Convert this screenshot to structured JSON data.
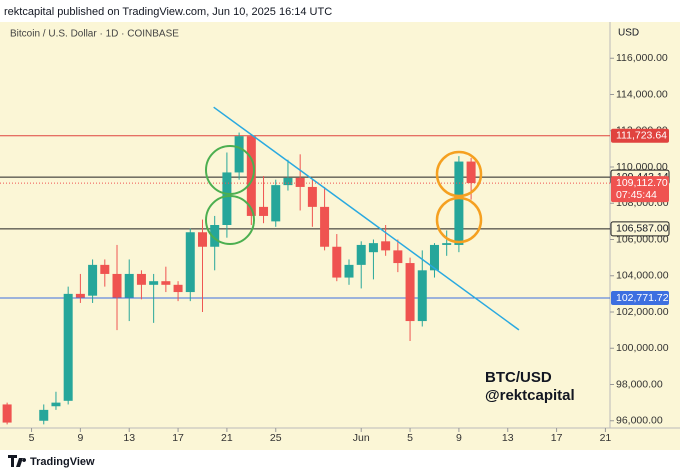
{
  "header": "rektcapital published on TradingView.com, Jun 10, 2025 16:14 UTC",
  "footer": "TradingView",
  "chart_data": {
    "type": "candlestick",
    "title": "Bitcoin / U.S. Dollar · 1D · COINBASE",
    "currency": "USD",
    "annotations": [
      "BTC/USD",
      "@rektcapital"
    ],
    "up_color": "#26a69a",
    "down_color": "#ef5350",
    "x": [
      "2025-05-03",
      "2025-05-06",
      "2025-05-07",
      "2025-05-08",
      "2025-05-09",
      "2025-05-10",
      "2025-05-11",
      "2025-05-12",
      "2025-05-13",
      "2025-05-14",
      "2025-05-15",
      "2025-05-16",
      "2025-05-17",
      "2025-05-18",
      "2025-05-19",
      "2025-05-20",
      "2025-05-21",
      "2025-05-22",
      "2025-05-23",
      "2025-05-24",
      "2025-05-25",
      "2025-05-26",
      "2025-05-27",
      "2025-05-28",
      "2025-05-29",
      "2025-05-30",
      "2025-05-31",
      "2025-06-01",
      "2025-06-02",
      "2025-06-03",
      "2025-06-04",
      "2025-06-05",
      "2025-06-06",
      "2025-06-07",
      "2025-06-08",
      "2025-06-09",
      "2025-06-10"
    ],
    "open": [
      96900,
      96000,
      96800,
      97100,
      103000,
      102900,
      104600,
      104100,
      102800,
      104100,
      103500,
      103700,
      103500,
      103100,
      106400,
      105600,
      106800,
      109700,
      111700,
      107800,
      107000,
      109000,
      109400,
      108900,
      107800,
      105600,
      103900,
      104600,
      105300,
      105900,
      105400,
      104700,
      101500,
      104300,
      105700,
      105700,
      110300
    ],
    "high": [
      97000,
      96900,
      97600,
      103400,
      104100,
      104900,
      104900,
      105700,
      104900,
      104300,
      104100,
      104500,
      103700,
      106600,
      107100,
      107300,
      110800,
      111900,
      111800,
      109500,
      109300,
      110400,
      110700,
      109300,
      108900,
      106300,
      104900,
      105900,
      106000,
      106800,
      106000,
      105000,
      105400,
      105800,
      106500,
      110600,
      110500
    ],
    "low": [
      95800,
      95800,
      96600,
      96900,
      102500,
      102500,
      103400,
      101000,
      101500,
      102700,
      101400,
      103100,
      102600,
      102600,
      102000,
      104300,
      106100,
      109300,
      106800,
      106900,
      106700,
      108700,
      107600,
      106700,
      105400,
      103700,
      103500,
      103300,
      103800,
      105100,
      104200,
      100400,
      101200,
      103900,
      105100,
      105300,
      108200
    ],
    "close": [
      95900,
      96600,
      97000,
      103000,
      102800,
      104600,
      104100,
      102800,
      104100,
      103500,
      103700,
      103500,
      103100,
      106400,
      105600,
      106800,
      109700,
      111700,
      107300,
      107300,
      109000,
      109400,
      108900,
      107800,
      105600,
      103900,
      104600,
      105700,
      105800,
      105400,
      104700,
      101500,
      104300,
      105700,
      105800,
      110300,
      109112.7
    ],
    "last_price_label": "109,112.70",
    "countdown": "07:45:44",
    "levels": {
      "values": [
        111723.64,
        109443.14,
        106587.0,
        102771.72
      ],
      "value_labels": [
        "111,723.64",
        "109,443.14",
        "106,587.00",
        "102,771.72"
      ],
      "colors": [
        "#e0433f",
        "#222222",
        "#222222",
        "#3d6fe0"
      ]
    },
    "trendline": {
      "x": [
        "2025-05-19T22:00",
        "2025-06-13T22:00"
      ],
      "values": [
        113300,
        101014
      ],
      "color": "#29a9e0"
    },
    "xlim": [
      "2025-05-02T10:00",
      "2025-06-21T09:00"
    ],
    "xticks": [
      {
        "value": "2025-05-05",
        "label": "5"
      },
      {
        "value": "2025-05-09",
        "label": "9"
      },
      {
        "value": "2025-05-13",
        "label": "13"
      },
      {
        "value": "2025-05-17",
        "label": "17"
      },
      {
        "value": "2025-05-21",
        "label": "21"
      },
      {
        "value": "2025-05-25",
        "label": "25"
      },
      {
        "value": "2025-06-01",
        "label": "Jun"
      },
      {
        "value": "2025-06-05",
        "label": "5"
      },
      {
        "value": "2025-06-09",
        "label": "9"
      },
      {
        "value": "2025-06-13",
        "label": "13"
      },
      {
        "value": "2025-06-17",
        "label": "17"
      },
      {
        "value": "2025-06-21",
        "label": "21"
      }
    ],
    "ylim": [
      95600,
      118000
    ],
    "yticks": [
      {
        "value": 96000,
        "label": "96,000.00"
      },
      {
        "value": 98000,
        "label": "98,000.00"
      },
      {
        "value": 100000,
        "label": "100,000.00"
      },
      {
        "value": 102000,
        "label": "102,000.00"
      },
      {
        "value": 104000,
        "label": "104,000.00"
      },
      {
        "value": 106000,
        "label": "106,000.00"
      },
      {
        "value": 108000,
        "label": "108,000.00"
      },
      {
        "value": 110000,
        "label": "110,000.00"
      },
      {
        "value": 112000,
        "label": "112,000.00"
      },
      {
        "value": 114000,
        "label": "114,000.00"
      },
      {
        "value": 116000,
        "label": "116,000.00"
      }
    ]
  }
}
